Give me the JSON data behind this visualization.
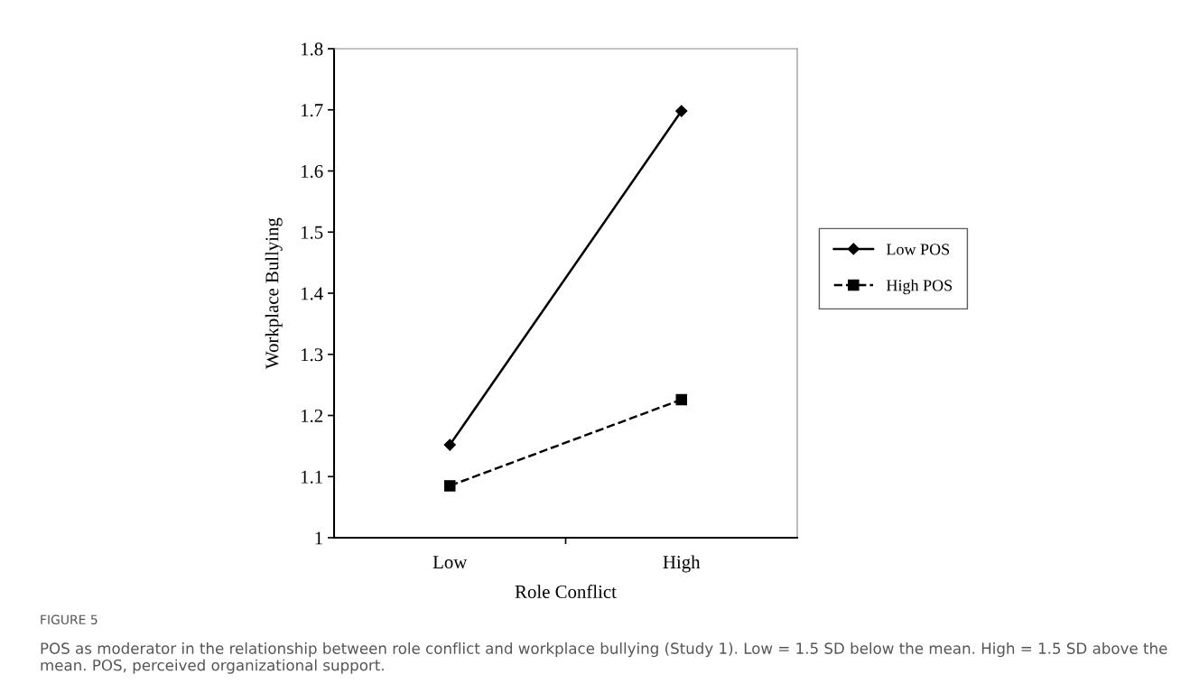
{
  "chart_data": {
    "type": "line",
    "xlabel": "Role Conflict",
    "ylabel": "Workplace Bullying",
    "categories": [
      "Low",
      "High"
    ],
    "series": [
      {
        "name": "Low POS",
        "color": "#000000",
        "values": [
          1.152,
          1.698
        ],
        "marker": "diamond",
        "line_style": "solid"
      },
      {
        "name": "High POS",
        "color": "#000000",
        "values": [
          1.085,
          1.226
        ],
        "marker": "square",
        "line_style": "dashed"
      }
    ],
    "ylim": [
      1,
      1.8
    ],
    "yticks": [
      1,
      1.1,
      1.2,
      1.3,
      1.4,
      1.5,
      1.6,
      1.7,
      1.8
    ],
    "grid": false,
    "legend": "right",
    "annotations": [
      "FIGURE 5",
      "POS as moderator in the relationship between role conflict and workplace bullying (Study 1). Low = 1.5 SD below the mean. High = 1.5 SD above the mean. POS, perceived organizational support."
    ]
  }
}
